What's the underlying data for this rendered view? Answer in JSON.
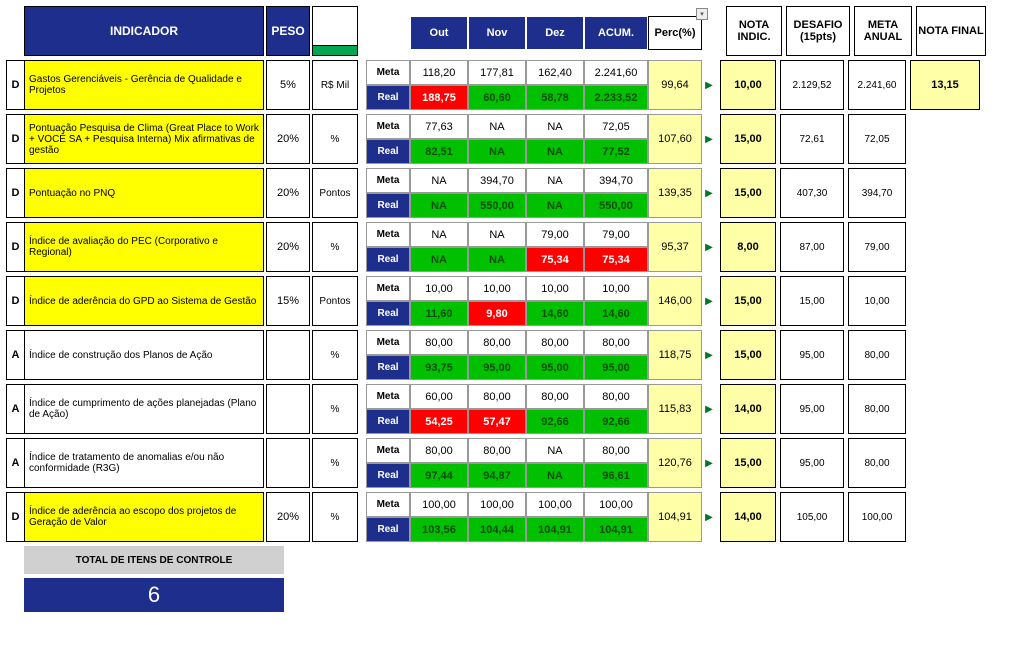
{
  "layout": {
    "w_letter": 18,
    "w_ind": 240,
    "w_peso": 44,
    "w_unit": 46,
    "w_mlabel": 44,
    "w_month": 58,
    "w_acum": 64,
    "w_perc": 54,
    "w_tri": 14,
    "w_score": 56,
    "w_desafio": 64,
    "w_meta": 58,
    "w_final": 70
  },
  "headers": {
    "indicador": "INDICADOR",
    "peso": "PESO",
    "months": [
      "Out",
      "Nov",
      "Dez",
      "ACUM.",
      "Perc(%)"
    ],
    "scores": [
      "NOTA INDIC.",
      "DESAFIO (15pts)",
      "META ANUAL",
      "NOTA FINAL"
    ]
  },
  "rows": [
    {
      "letter": "D",
      "hl": true,
      "ind": "Gastos Gerenciáveis - Gerência de Qualidade e Projetos",
      "peso": "5%",
      "unit": "R$ Mil",
      "meta": [
        "118,20",
        "177,81",
        "162,40",
        "2.241,60"
      ],
      "real": [
        "188,75",
        "60,60",
        "58,78",
        "2.233,52"
      ],
      "realc": [
        "red",
        "green",
        "green",
        "green"
      ],
      "perc": "99,64",
      "nota": "10,00",
      "desafio": "2.129,52",
      "metaAnual": "2.241,60",
      "final": "13,15"
    },
    {
      "letter": "D",
      "hl": true,
      "ind": "Pontuação  Pesquisa de Clima  (Great Place to Work + VOCÊ SA +  Pesquisa Interna) Mix afirmativas de gestão",
      "peso": "20%",
      "unit": "%",
      "meta": [
        "77,63",
        "NA",
        "NA",
        "72,05"
      ],
      "real": [
        "82,51",
        "NA",
        "NA",
        "77,52"
      ],
      "realc": [
        "green",
        "green",
        "green",
        "green"
      ],
      "perc": "107,60",
      "nota": "15,00",
      "desafio": "72,61",
      "metaAnual": "72,05",
      "final": ""
    },
    {
      "letter": "D",
      "hl": true,
      "ind": "Pontuação no PNQ",
      "peso": "20%",
      "unit": "Pontos",
      "meta": [
        "NA",
        "394,70",
        "NA",
        "394,70"
      ],
      "real": [
        "NA",
        "550,00",
        "NA",
        "550,00"
      ],
      "realc": [
        "green",
        "green",
        "green",
        "green"
      ],
      "perc": "139,35",
      "nota": "15,00",
      "desafio": "407,30",
      "metaAnual": "394,70",
      "final": ""
    },
    {
      "letter": "D",
      "hl": true,
      "ind": "Índice de avaliação do PEC (Corporativo e Regional)",
      "peso": "20%",
      "unit": "%",
      "meta": [
        "NA",
        "NA",
        "79,00",
        "79,00"
      ],
      "real": [
        "NA",
        "NA",
        "75,34",
        "75,34"
      ],
      "realc": [
        "green",
        "green",
        "red",
        "red"
      ],
      "perc": "95,37",
      "nota": "8,00",
      "desafio": "87,00",
      "metaAnual": "79,00",
      "final": ""
    },
    {
      "letter": "D",
      "hl": true,
      "ind": "Índice de aderência do GPD ao Sistema de Gestão",
      "peso": "15%",
      "unit": "Pontos",
      "meta": [
        "10,00",
        "10,00",
        "10,00",
        "10,00"
      ],
      "real": [
        "11,60",
        "9,80",
        "14,60",
        "14,60"
      ],
      "realc": [
        "green",
        "red",
        "green",
        "green"
      ],
      "perc": "146,00",
      "nota": "15,00",
      "desafio": "15,00",
      "metaAnual": "10,00",
      "final": ""
    },
    {
      "letter": "A",
      "hl": false,
      "ind": "Índice de construção dos Planos de Ação",
      "peso": "",
      "unit": "%",
      "meta": [
        "80,00",
        "80,00",
        "80,00",
        "80,00"
      ],
      "real": [
        "93,75",
        "95,00",
        "95,00",
        "95,00"
      ],
      "realc": [
        "green",
        "green",
        "green",
        "green"
      ],
      "perc": "118,75",
      "nota": "15,00",
      "desafio": "95,00",
      "metaAnual": "80,00",
      "final": ""
    },
    {
      "letter": "A",
      "hl": false,
      "ind": "Índice de cumprimento de ações planejadas (Plano de Ação)",
      "peso": "",
      "unit": "%",
      "meta": [
        "60,00",
        "80,00",
        "80,00",
        "80,00"
      ],
      "real": [
        "54,25",
        "57,47",
        "92,66",
        "92,66"
      ],
      "realc": [
        "red",
        "red",
        "green",
        "green"
      ],
      "perc": "115,83",
      "nota": "14,00",
      "desafio": "95,00",
      "metaAnual": "80,00",
      "final": ""
    },
    {
      "letter": "A",
      "hl": false,
      "ind": "Índice de tratamento de anomalias e/ou não conformidade (R3G)",
      "peso": "",
      "unit": "%",
      "meta": [
        "80,00",
        "80,00",
        "NA",
        "80,00"
      ],
      "real": [
        "97,44",
        "94,87",
        "NA",
        "96,61"
      ],
      "realc": [
        "green",
        "green",
        "green",
        "green"
      ],
      "perc": "120,76",
      "nota": "15,00",
      "desafio": "95,00",
      "metaAnual": "80,00",
      "final": ""
    },
    {
      "letter": "D",
      "hl": true,
      "ind": "Índice de aderência ao escopo dos projetos de Geração de Valor",
      "peso": "20%",
      "unit": "%",
      "meta": [
        "100,00",
        "100,00",
        "100,00",
        "100,00"
      ],
      "real": [
        "103,56",
        "104,44",
        "104,91",
        "104,91"
      ],
      "realc": [
        "green",
        "green",
        "green",
        "green"
      ],
      "perc": "104,91",
      "nota": "14,00",
      "desafio": "105,00",
      "metaAnual": "100,00",
      "final": ""
    }
  ],
  "footer": {
    "label": "TOTAL DE ITENS DE CONTROLE",
    "count": "6"
  }
}
